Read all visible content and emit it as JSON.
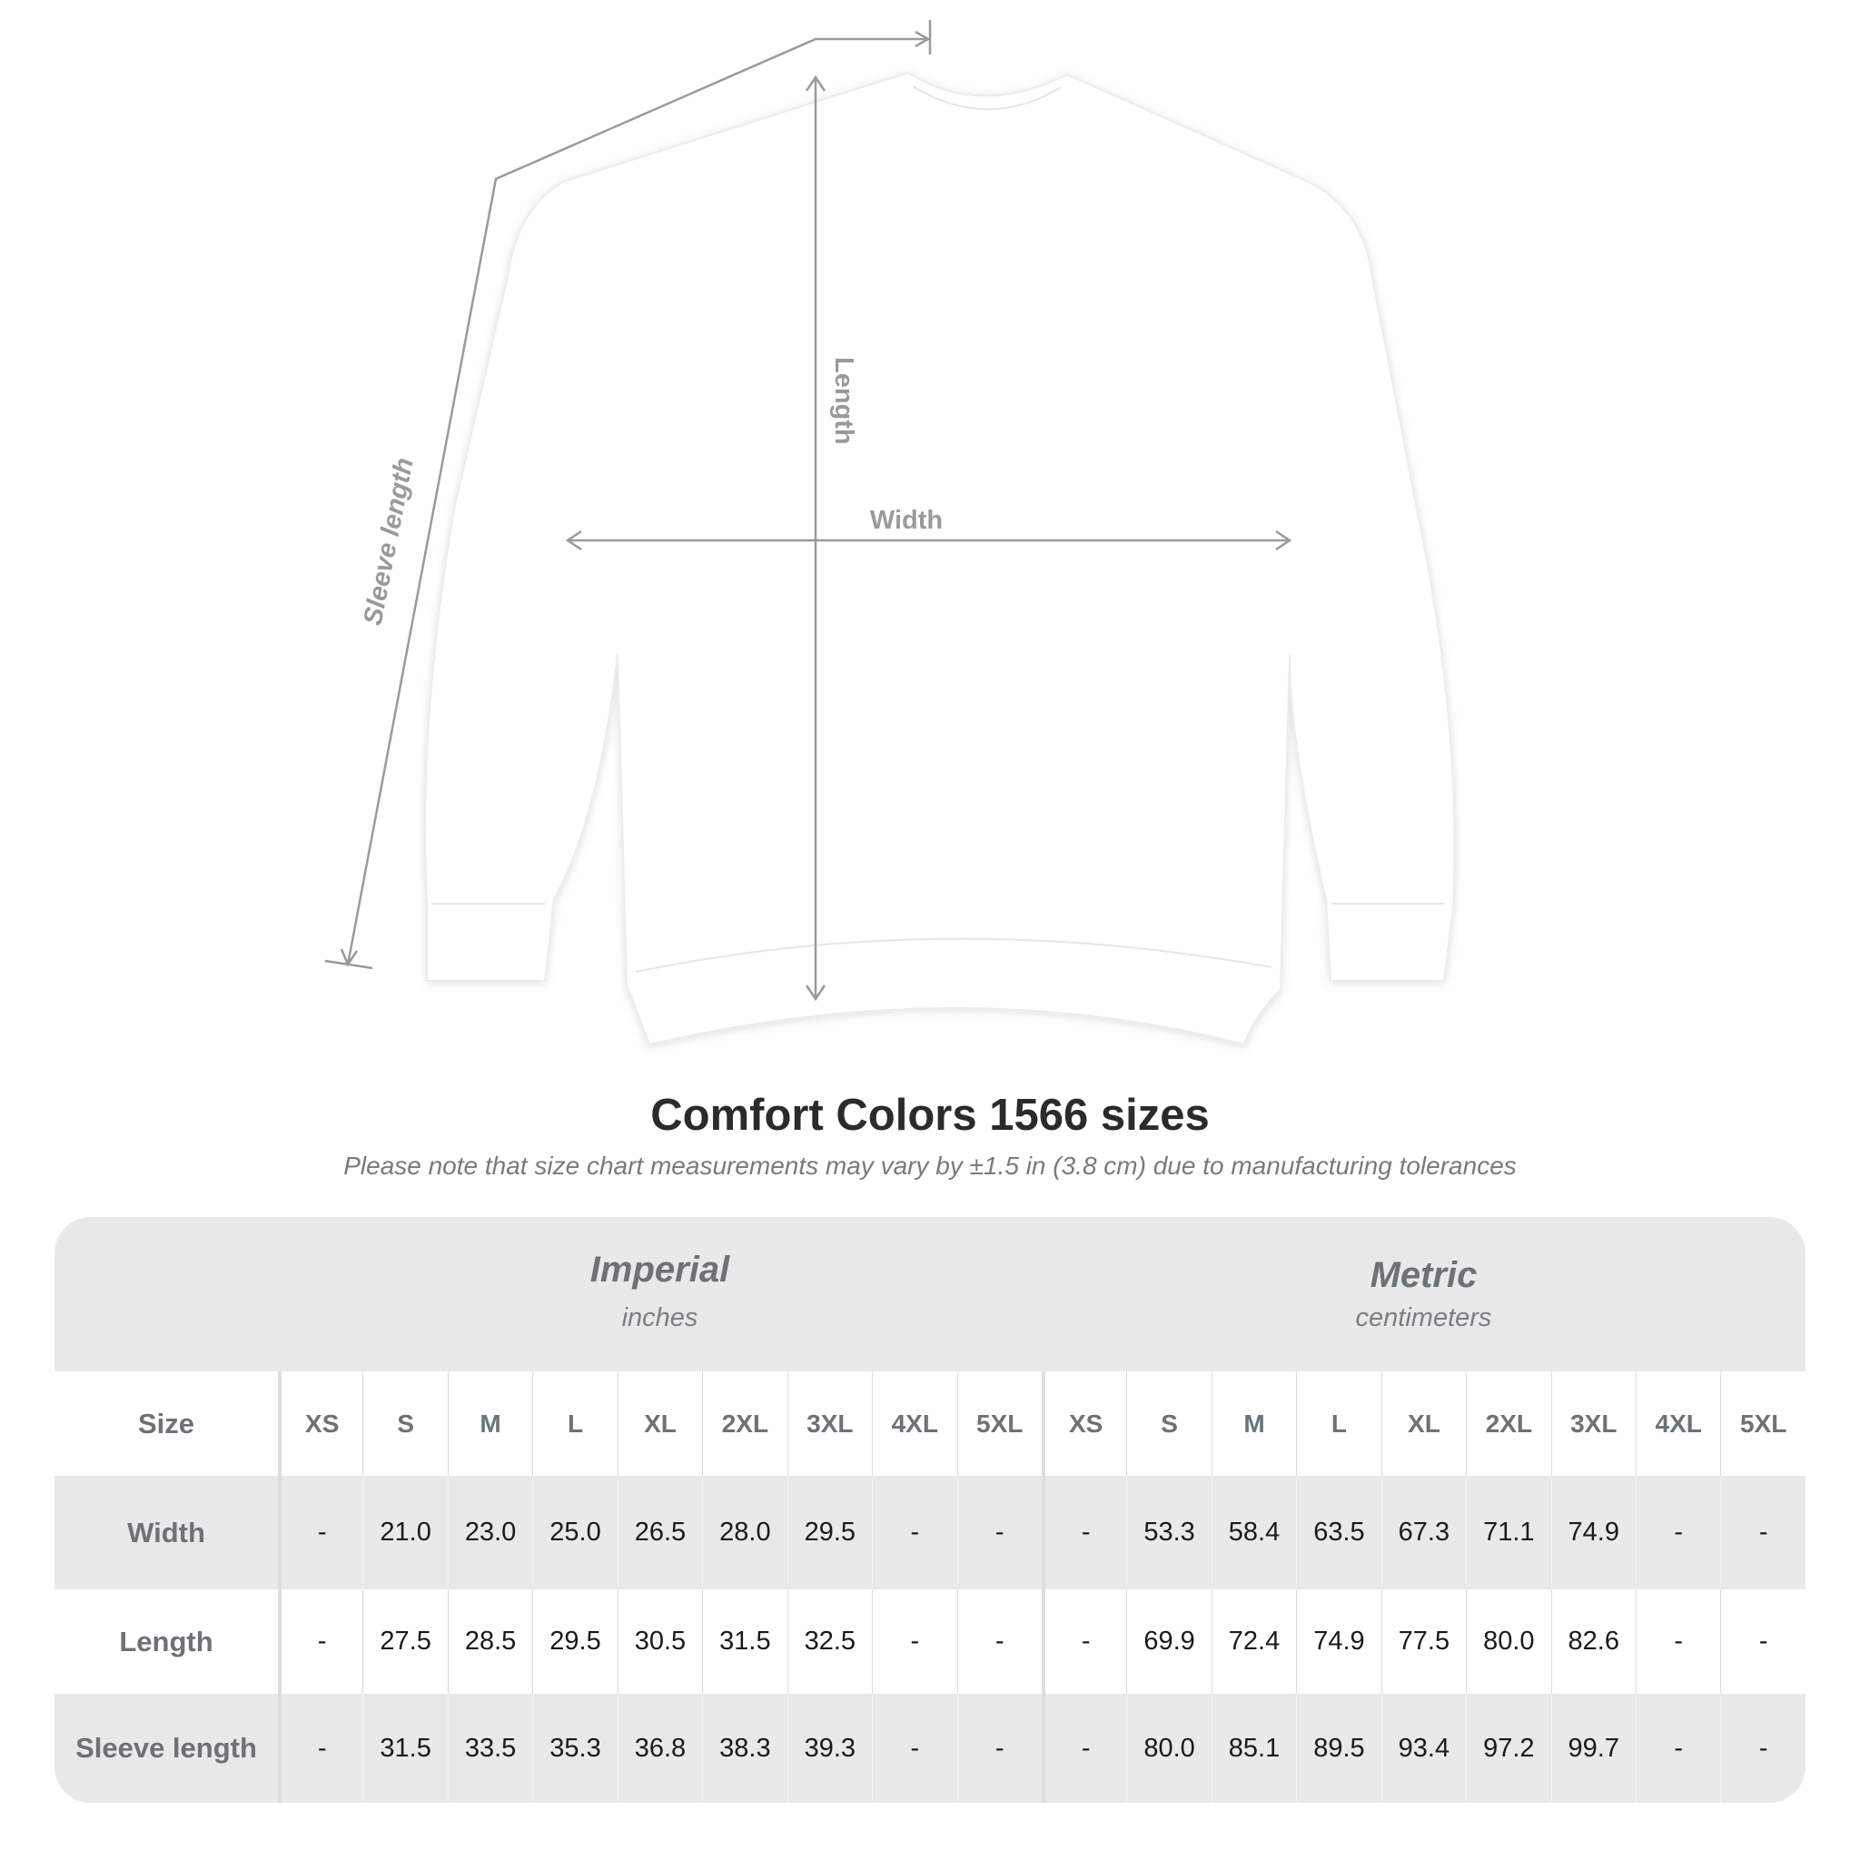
{
  "diagram": {
    "labels": {
      "length": "Length",
      "width": "Width",
      "sleeve": "Sleeve length"
    },
    "garment_color": "#ffffff",
    "line_color": "#9a9a9a"
  },
  "title": "Comfort Colors 1566 sizes",
  "note": "Please note that size chart measurements may vary by ±1.5 in (3.8 cm) due to manufacturing tolerances",
  "table": {
    "imperial": {
      "title": "Imperial",
      "unit": "inches"
    },
    "metric": {
      "title": "Metric",
      "unit": "centimeters"
    },
    "size_label": "Size",
    "sizes": [
      "XS",
      "S",
      "M",
      "L",
      "XL",
      "2XL",
      "3XL",
      "4XL",
      "5XL"
    ],
    "rows": [
      {
        "label": "Width",
        "imperial": [
          "-",
          "21.0",
          "23.0",
          "25.0",
          "26.5",
          "28.0",
          "29.5",
          "-",
          "-"
        ],
        "metric": [
          "-",
          "53.3",
          "58.4",
          "63.5",
          "67.3",
          "71.1",
          "74.9",
          "-",
          "-"
        ]
      },
      {
        "label": "Length",
        "imperial": [
          "-",
          "27.5",
          "28.5",
          "29.5",
          "30.5",
          "31.5",
          "32.5",
          "-",
          "-"
        ],
        "metric": [
          "-",
          "69.9",
          "72.4",
          "74.9",
          "77.5",
          "80.0",
          "82.6",
          "-",
          "-"
        ]
      },
      {
        "label": "Sleeve length",
        "imperial": [
          "-",
          "31.5",
          "33.5",
          "35.3",
          "36.8",
          "38.3",
          "39.3",
          "-",
          "-"
        ],
        "metric": [
          "-",
          "80.0",
          "85.1",
          "89.5",
          "93.4",
          "97.2",
          "99.7",
          "-",
          "-"
        ]
      }
    ]
  }
}
